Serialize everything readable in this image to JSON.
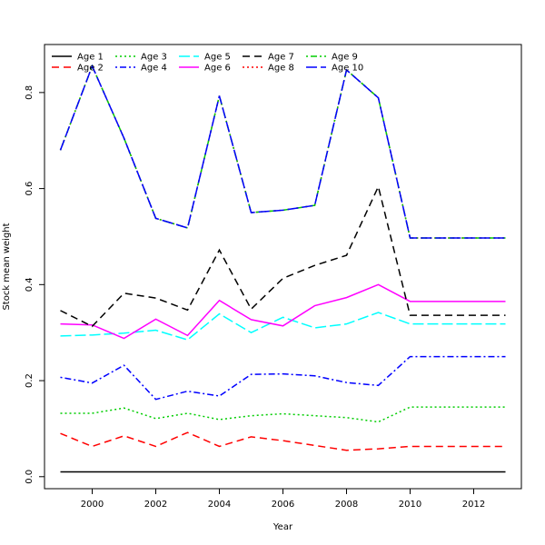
{
  "chart_data": {
    "type": "line",
    "title": "",
    "xlabel": "Year",
    "ylabel": "Stock mean weight",
    "xlim": [
      1998.5,
      2013.5
    ],
    "ylim": [
      -0.025,
      0.9
    ],
    "x_ticks": [
      2000,
      2002,
      2004,
      2006,
      2008,
      2010,
      2012
    ],
    "y_ticks": [
      0.0,
      0.2,
      0.4,
      0.6,
      0.8
    ],
    "y_tick_labels": [
      "0.0",
      "0.2",
      "0.4",
      "0.6",
      "0.8"
    ],
    "grid": false,
    "legend_position": "top-left",
    "x": [
      1999,
      2000,
      2001,
      2002,
      2003,
      2004,
      2005,
      2006,
      2007,
      2008,
      2009,
      2010,
      2011,
      2012,
      2013
    ],
    "series": [
      {
        "name": "Age 1",
        "color": "#000000",
        "dash": "solid",
        "values": [
          0.01,
          0.01,
          0.01,
          0.01,
          0.01,
          0.01,
          0.01,
          0.01,
          0.01,
          0.01,
          0.01,
          0.01,
          0.01,
          0.01,
          0.01
        ]
      },
      {
        "name": "Age 2",
        "color": "#ff0000",
        "dash": "dashed",
        "values": [
          0.09,
          0.063,
          0.085,
          0.063,
          0.092,
          0.063,
          0.083,
          0.075,
          0.065,
          0.055,
          0.058,
          0.063,
          0.063,
          0.063,
          0.063
        ]
      },
      {
        "name": "Age 3",
        "color": "#00cd00",
        "dash": "dotted",
        "values": [
          0.132,
          0.132,
          0.143,
          0.121,
          0.132,
          0.119,
          0.127,
          0.131,
          0.127,
          0.123,
          0.114,
          0.145,
          0.145,
          0.145,
          0.145
        ]
      },
      {
        "name": "Age 4",
        "color": "#0000ff",
        "dash": "dotdash",
        "values": [
          0.207,
          0.195,
          0.232,
          0.161,
          0.178,
          0.168,
          0.213,
          0.214,
          0.21,
          0.196,
          0.19,
          0.25,
          0.25,
          0.25,
          0.25
        ]
      },
      {
        "name": "Age 5",
        "color": "#00ffff",
        "dash": "longdash",
        "values": [
          0.293,
          0.295,
          0.299,
          0.305,
          0.285,
          0.339,
          0.3,
          0.332,
          0.31,
          0.318,
          0.342,
          0.318,
          0.318,
          0.318,
          0.318
        ]
      },
      {
        "name": "Age 6",
        "color": "#ff00ff",
        "dash": "solid",
        "values": [
          0.318,
          0.316,
          0.288,
          0.328,
          0.294,
          0.367,
          0.327,
          0.314,
          0.356,
          0.373,
          0.4,
          0.365,
          0.365,
          0.365,
          0.365
        ]
      },
      {
        "name": "Age 7",
        "color": "#000000",
        "dash": "dashed",
        "values": [
          0.346,
          0.313,
          0.382,
          0.372,
          0.347,
          0.472,
          0.349,
          0.413,
          0.44,
          0.461,
          0.604,
          0.336,
          0.336,
          0.336,
          0.336
        ]
      },
      {
        "name": "Age 8",
        "color": "#ff0000",
        "dash": "dotted",
        "values": [
          0.68,
          0.855,
          0.705,
          0.538,
          0.518,
          0.793,
          0.55,
          0.555,
          0.565,
          0.847,
          0.789,
          0.497,
          0.497,
          0.497,
          0.497
        ]
      },
      {
        "name": "Age 9",
        "color": "#00cd00",
        "dash": "dotdash",
        "values": [
          0.68,
          0.855,
          0.705,
          0.538,
          0.518,
          0.793,
          0.55,
          0.555,
          0.565,
          0.847,
          0.789,
          0.497,
          0.497,
          0.497,
          0.497
        ]
      },
      {
        "name": "Age 10",
        "color": "#0000ff",
        "dash": "longdash",
        "values": [
          0.68,
          0.855,
          0.705,
          0.538,
          0.518,
          0.793,
          0.55,
          0.555,
          0.565,
          0.847,
          0.789,
          0.497,
          0.497,
          0.497,
          0.497
        ]
      }
    ]
  }
}
